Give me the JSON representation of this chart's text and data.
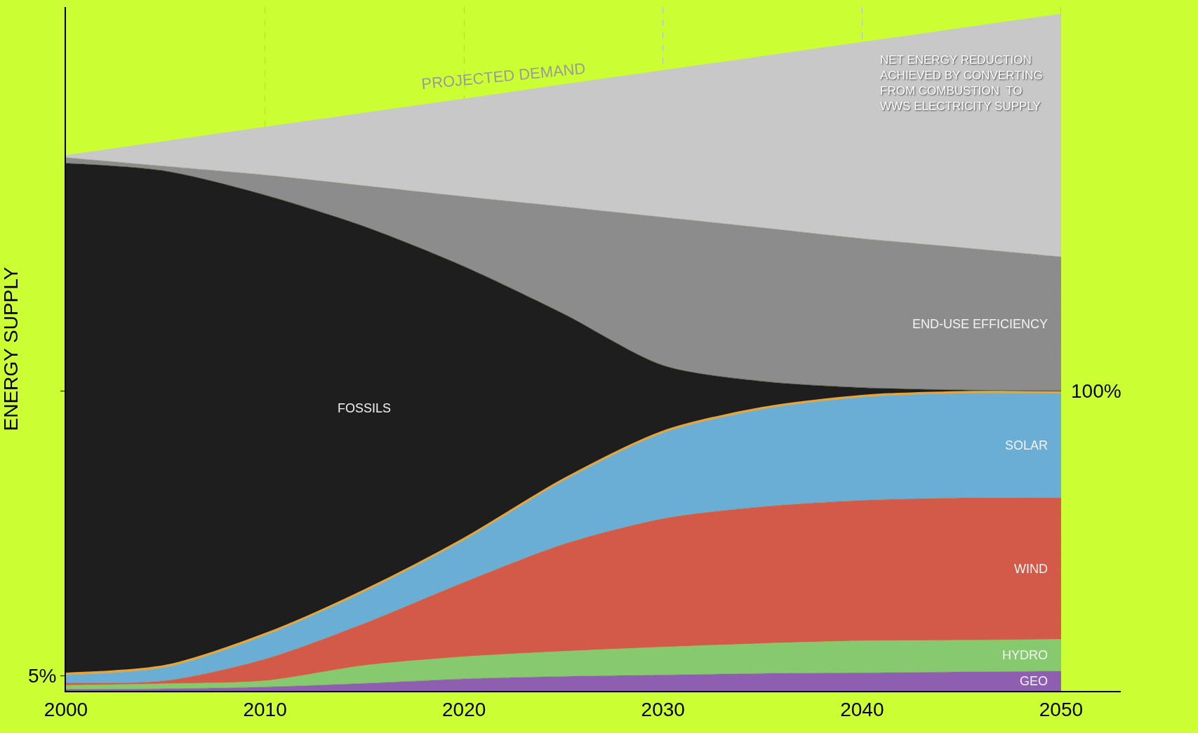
{
  "chart_data": {
    "type": "area",
    "stacked": true,
    "ylabel": "ENERGY SUPPLY",
    "x": [
      2000,
      2005,
      2010,
      2015,
      2020,
      2025,
      2030,
      2035,
      2040,
      2045,
      2050
    ],
    "series": [
      {
        "name": "GEO",
        "color": "#8e5fb0",
        "values": [
          0.5,
          0.7,
          1.3,
          2.5,
          4,
          4.8,
          5.3,
          5.8,
          6,
          6.3,
          6.6
        ]
      },
      {
        "name": "HYDRO",
        "color": "#86c96e",
        "values": [
          1.4,
          1.7,
          2.1,
          6,
          7.4,
          8.4,
          9.3,
          10,
          10.7,
          10.6,
          10.6
        ]
      },
      {
        "name": "WIND",
        "color": "#d35a48",
        "values": [
          0.7,
          1.0,
          7.2,
          14,
          24.8,
          35.7,
          42.8,
          45.6,
          46.8,
          47.4,
          47.1
        ]
      },
      {
        "name": "SOLAR",
        "color": "#6aaed6",
        "values": [
          2.7,
          4.5,
          7.9,
          10.6,
          14.1,
          21.2,
          28.6,
          32.5,
          34.4,
          34.9,
          34.9
        ]
      },
      {
        "color": "#e8a33a",
        "values": [
          0.5,
          0.5,
          0.5,
          0.5,
          0.5,
          0.5,
          0.5,
          0.5,
          0.5,
          0.5,
          0.5
        ]
      },
      {
        "name": "FOSSILS",
        "color": "#1e1e1e",
        "values": [
          170.1,
          164.9,
          146.3,
          121.2,
          90.7,
          55.1,
          22,
          8.8,
          2.7,
          0.6,
          0.3
        ]
      },
      {
        "name": "END-USE EFFICIENCY",
        "color": "#8c8c8c",
        "values": [
          1.9,
          1.6,
          6.7,
          13.6,
          23.3,
          35.7,
          49.4,
          51.2,
          49.7,
          47.5,
          44.7
        ]
      },
      {
        "name": "NET ENERGY REDUCTION\nACHIEVED BY CONVERTING\nFROM COMBUSTION  TO\nWWS ELECTRICITY SUPPLY",
        "color": "#c8c8c8",
        "values": [
          0.8,
          8.4,
          16.0,
          24.3,
          32.6,
          40.8,
          49.0,
          57.2,
          65.5,
          73.2,
          81.0
        ]
      }
    ],
    "annotations": [
      {
        "text": "PROJECTED DEMAND",
        "x": 2022,
        "y": 199
      },
      {
        "text": "100%",
        "x": 2050,
        "y": 100
      }
    ],
    "xlim": [
      2000,
      2053
    ],
    "xticks": [
      2000,
      2010,
      2020,
      2030,
      2040,
      2050
    ],
    "ylim": [
      0,
      228
    ],
    "yticks": [
      {
        "value": 5,
        "label": "5%"
      },
      {
        "value": 100,
        "label": null
      }
    ],
    "grid": "x"
  }
}
